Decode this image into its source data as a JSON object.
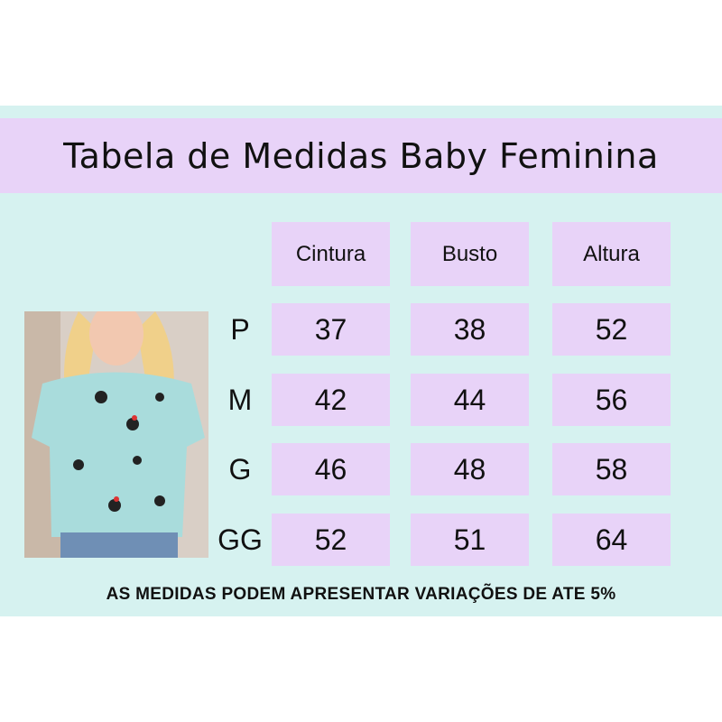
{
  "title": "Tabela de Medidas  Baby Feminina",
  "columns": [
    "Cintura",
    "Busto",
    "Altura"
  ],
  "rows": [
    {
      "size": "P",
      "values": [
        "37",
        "38",
        "52"
      ]
    },
    {
      "size": "M",
      "values": [
        "42",
        "44",
        "56"
      ]
    },
    {
      "size": "G",
      "values": [
        "46",
        "48",
        "58"
      ]
    },
    {
      "size": "GG",
      "values": [
        "52",
        "51",
        "64"
      ]
    }
  ],
  "footer": "AS MEDIDAS PODEM APRESENTAR VARIAÇÕES DE ATE 5%",
  "colors": {
    "background_band": "#d6f2f0",
    "cell": "#e8d3f8",
    "shirt": "#a9dcdc"
  }
}
